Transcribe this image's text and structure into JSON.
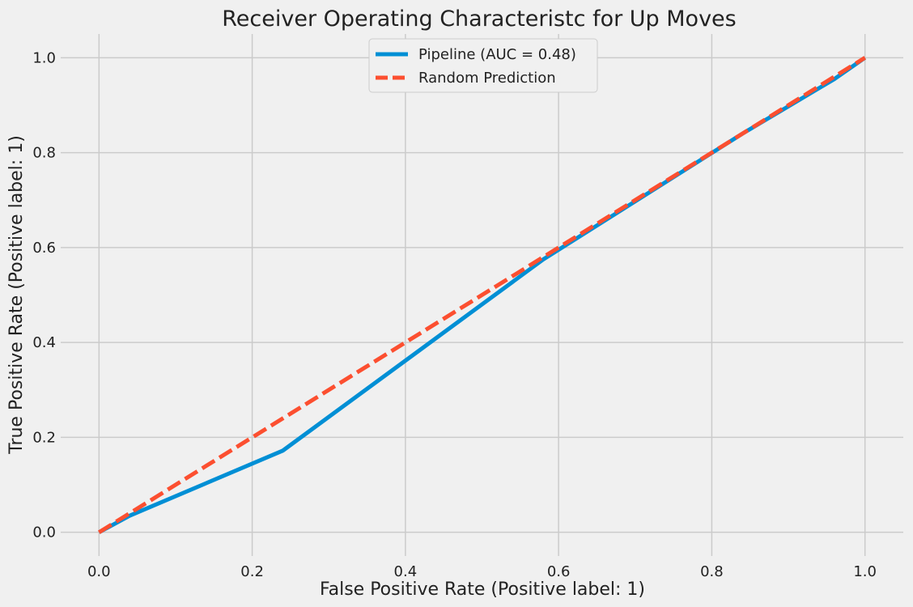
{
  "chart_data": {
    "type": "line",
    "title": "Receiver Operating Characteristc for Up Moves",
    "xlabel": "False Positive Rate (Positive label: 1)",
    "ylabel": "True Positive Rate (Positive label: 1)",
    "xlim": [
      -0.05,
      1.05
    ],
    "ylim": [
      -0.05,
      1.05
    ],
    "xticks": [
      "0.0",
      "0.2",
      "0.4",
      "0.6",
      "0.8",
      "1.0"
    ],
    "yticks": [
      "0.0",
      "0.2",
      "0.4",
      "0.6",
      "0.8",
      "1.0"
    ],
    "grid": true,
    "legend_position": "top-center",
    "series": [
      {
        "name": "Pipeline (AUC = 0.48)",
        "color": "#008fd5",
        "dash": "solid",
        "x": [
          0.0,
          0.04,
          0.24,
          0.58,
          0.84,
          0.96,
          1.0
        ],
        "y": [
          0.0,
          0.035,
          0.172,
          0.575,
          0.84,
          0.955,
          1.0
        ]
      },
      {
        "name": "Random Prediction",
        "color": "#fc4f30",
        "dash": "dashed",
        "x": [
          0.0,
          1.0
        ],
        "y": [
          0.0,
          1.0
        ]
      }
    ]
  }
}
